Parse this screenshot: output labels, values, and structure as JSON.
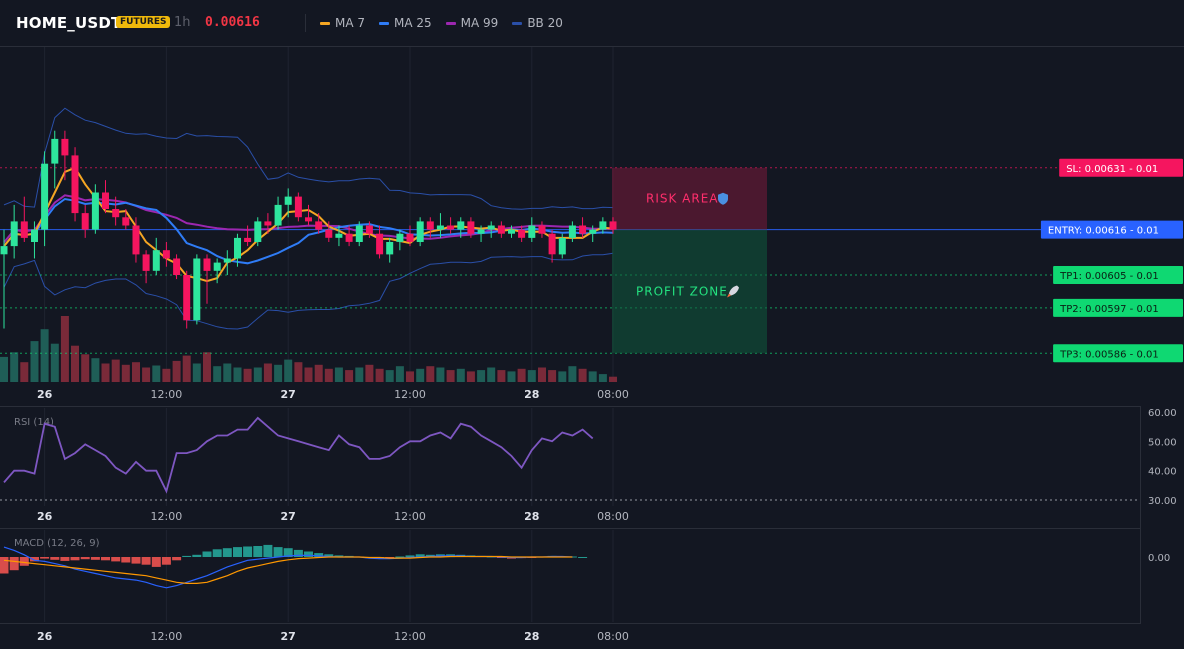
{
  "header": {
    "symbol": "HOME_USDT",
    "badge": "FUTURES",
    "interval": "1h",
    "last_price": "0.00616",
    "indicators": [
      {
        "label": "MA 7",
        "color": "#f5a623"
      },
      {
        "label": "MA 25",
        "color": "#2f7cf6"
      },
      {
        "label": "MA 99",
        "color": "#9c27b0"
      },
      {
        "label": "BB 20",
        "color": "#2a4fa8"
      }
    ]
  },
  "colors": {
    "up": "#26a69a",
    "up_bright": "#2ee59d",
    "down": "#f23645",
    "down_bright": "#f5155f",
    "grid": "#1f2330",
    "separator": "#2a2e39",
    "text": "#d1d4dc",
    "muted": "#787b86",
    "entry": "#2962ff",
    "sl": "#f5155f",
    "tp": "#0fd872",
    "rsi": "#7e57c2",
    "macd": "#2962ff",
    "signal": "#ff9800"
  },
  "chart_data": [
    {
      "type": "candlestick",
      "title": "HOME_USDT 1h",
      "x_tick_labels": [
        "26",
        "12:00",
        "27",
        "12:00",
        "28",
        "08:00"
      ],
      "x_tick_index": [
        4,
        16,
        28,
        40,
        52,
        60
      ],
      "ylim": [
        0.0058,
        0.00655
      ],
      "price_levels": [
        {
          "label": "SL: 0.00631 - 0.01",
          "value": 0.00631,
          "type": "sl"
        },
        {
          "label": "ENTRY: 0.00616 - 0.01",
          "value": 0.00616,
          "type": "entry"
        },
        {
          "label": "TP1: 0.00605 - 0.01",
          "value": 0.00605,
          "type": "tp"
        },
        {
          "label": "TP2: 0.00597 - 0.01",
          "value": 0.00597,
          "type": "tp"
        },
        {
          "label": "TP3: 0.00586 - 0.01",
          "value": 0.00586,
          "type": "tp"
        }
      ],
      "zones": [
        {
          "label": "RISK AREA",
          "icon": "shield-icon",
          "from": 0.00616,
          "to": 0.00631
        },
        {
          "label": "PROFIT ZONE",
          "icon": "rocket-icon",
          "from": 0.00586,
          "to": 0.00616
        }
      ],
      "candles_ohlc": [
        [
          0.0061,
          0.00616,
          0.00592,
          0.00612
        ],
        [
          0.00612,
          0.00622,
          0.00609,
          0.00618
        ],
        [
          0.00618,
          0.00624,
          0.00613,
          0.00614
        ],
        [
          0.00613,
          0.00618,
          0.00609,
          0.00616
        ],
        [
          0.00616,
          0.00635,
          0.00612,
          0.00632
        ],
        [
          0.00632,
          0.0064,
          0.00626,
          0.00638
        ],
        [
          0.00638,
          0.0064,
          0.00628,
          0.00634
        ],
        [
          0.00634,
          0.00636,
          0.00618,
          0.0062
        ],
        [
          0.0062,
          0.00622,
          0.00614,
          0.00616
        ],
        [
          0.00616,
          0.00627,
          0.00615,
          0.00625
        ],
        [
          0.00625,
          0.00628,
          0.0062,
          0.00621
        ],
        [
          0.00621,
          0.00624,
          0.00617,
          0.00619
        ],
        [
          0.00619,
          0.00621,
          0.00616,
          0.00617
        ],
        [
          0.00617,
          0.00619,
          0.00608,
          0.0061
        ],
        [
          0.0061,
          0.00611,
          0.00603,
          0.00606
        ],
        [
          0.00606,
          0.00614,
          0.00605,
          0.00611
        ],
        [
          0.00611,
          0.00613,
          0.00607,
          0.00609
        ],
        [
          0.00609,
          0.0061,
          0.00604,
          0.00605
        ],
        [
          0.00605,
          0.00606,
          0.00592,
          0.00594
        ],
        [
          0.00594,
          0.0061,
          0.00593,
          0.00609
        ],
        [
          0.00609,
          0.0061,
          0.00598,
          0.00606
        ],
        [
          0.00606,
          0.00609,
          0.00603,
          0.00608
        ],
        [
          0.00608,
          0.00611,
          0.00605,
          0.00609
        ],
        [
          0.00609,
          0.00615,
          0.00607,
          0.00614
        ],
        [
          0.00614,
          0.00617,
          0.00612,
          0.00613
        ],
        [
          0.00613,
          0.00619,
          0.00612,
          0.00618
        ],
        [
          0.00618,
          0.0062,
          0.00615,
          0.00617
        ],
        [
          0.00617,
          0.00624,
          0.00616,
          0.00622
        ],
        [
          0.00622,
          0.00626,
          0.00619,
          0.00624
        ],
        [
          0.00624,
          0.00625,
          0.00618,
          0.00619
        ],
        [
          0.00619,
          0.00622,
          0.00617,
          0.00618
        ],
        [
          0.00618,
          0.0062,
          0.00615,
          0.00616
        ],
        [
          0.00616,
          0.00618,
          0.00613,
          0.00614
        ],
        [
          0.00614,
          0.00617,
          0.00612,
          0.00615
        ],
        [
          0.00615,
          0.00617,
          0.00612,
          0.00613
        ],
        [
          0.00613,
          0.00618,
          0.00612,
          0.00617
        ],
        [
          0.00617,
          0.00618,
          0.00614,
          0.00615
        ],
        [
          0.00615,
          0.00617,
          0.00609,
          0.0061
        ],
        [
          0.0061,
          0.00614,
          0.00608,
          0.00613
        ],
        [
          0.00613,
          0.00616,
          0.00611,
          0.00615
        ],
        [
          0.00615,
          0.00617,
          0.00612,
          0.00613
        ],
        [
          0.00613,
          0.00619,
          0.00612,
          0.00618
        ],
        [
          0.00618,
          0.00619,
          0.00614,
          0.00616
        ],
        [
          0.00616,
          0.0062,
          0.00614,
          0.00617
        ],
        [
          0.00617,
          0.00619,
          0.00615,
          0.00616
        ],
        [
          0.00616,
          0.00619,
          0.00614,
          0.00618
        ],
        [
          0.00618,
          0.00619,
          0.00614,
          0.00615
        ],
        [
          0.00615,
          0.00617,
          0.00613,
          0.00616
        ],
        [
          0.00616,
          0.00618,
          0.00614,
          0.00617
        ],
        [
          0.00617,
          0.00618,
          0.00614,
          0.00615
        ],
        [
          0.00615,
          0.00617,
          0.00614,
          0.00616
        ],
        [
          0.00616,
          0.00617,
          0.00613,
          0.00614
        ],
        [
          0.00614,
          0.00619,
          0.00613,
          0.00617
        ],
        [
          0.00617,
          0.00618,
          0.00614,
          0.00615
        ],
        [
          0.00615,
          0.00616,
          0.00608,
          0.0061
        ],
        [
          0.0061,
          0.00615,
          0.00609,
          0.00614
        ],
        [
          0.00614,
          0.00618,
          0.00613,
          0.00617
        ],
        [
          0.00617,
          0.00619,
          0.00614,
          0.00615
        ],
        [
          0.00615,
          0.00617,
          0.00613,
          0.00616
        ],
        [
          0.00616,
          0.00619,
          0.00615,
          0.00618
        ],
        [
          0.00618,
          0.00619,
          0.00615,
          0.00616
        ]
      ],
      "volume": [
        38,
        45,
        30,
        62,
        80,
        58,
        100,
        55,
        42,
        36,
        28,
        34,
        26,
        30,
        22,
        25,
        20,
        32,
        40,
        28,
        45,
        24,
        28,
        22,
        20,
        22,
        28,
        26,
        34,
        30,
        22,
        26,
        20,
        22,
        18,
        22,
        26,
        20,
        18,
        24,
        16,
        20,
        24,
        22,
        18,
        20,
        16,
        18,
        22,
        18,
        16,
        20,
        18,
        22,
        18,
        16,
        24,
        20,
        16,
        12,
        8
      ]
    },
    {
      "type": "line",
      "title": "RSI (14)",
      "y_tick_labels": [
        "60.00",
        "50.00",
        "40.00",
        "30.00"
      ],
      "ylim": [
        30,
        60
      ],
      "values": [
        36,
        40,
        40,
        39,
        56,
        55,
        44,
        46,
        49,
        47,
        45,
        41,
        39,
        43,
        40,
        40,
        33,
        46,
        46,
        47,
        50,
        52,
        52,
        54,
        54,
        58,
        55,
        52,
        51,
        50,
        49,
        48,
        47,
        52,
        49,
        48,
        44,
        44,
        45,
        48,
        50,
        50,
        52,
        53,
        51,
        56,
        55,
        52,
        50,
        48,
        45,
        41,
        47,
        51,
        50,
        53,
        52,
        54,
        51
      ],
      "reference_lines": [
        30
      ]
    },
    {
      "type": "bar",
      "title": "MACD (12, 26, 9)",
      "y_tick_labels": [
        "0.00"
      ],
      "histogram": [
        -3e-05,
        -2.4e-05,
        -1.6e-05,
        -8e-06,
        -3e-06,
        -5e-06,
        -7e-06,
        -6e-06,
        -4e-06,
        -5e-06,
        -6e-06,
        -8e-06,
        -1e-05,
        -1.2e-05,
        -1.4e-05,
        -1.8e-05,
        -1.4e-05,
        -6e-06,
        2e-06,
        4e-06,
        1e-05,
        1.4e-05,
        1.6e-05,
        1.8e-05,
        1.9e-05,
        2e-05,
        2.2e-05,
        1.8e-05,
        1.6e-05,
        1.3e-05,
        1e-05,
        7e-06,
        5e-06,
        3e-06,
        2e-06,
        1e-06,
        -2e-06,
        -3e-06,
        -2e-06,
        1e-06,
        3e-06,
        5e-06,
        4e-06,
        5e-06,
        5e-06,
        4e-06,
        3e-06,
        2e-06,
        1e-06,
        -1e-06,
        -3e-06,
        -2e-06,
        -1e-06,
        1e-06,
        2e-06,
        1e-06,
        1e-06,
        0
      ],
      "macd_line": [
        1.8e-05,
        1.2e-05,
        4e-06,
        -6e-06,
        -8e-06,
        -1.2e-05,
        -1.6e-05,
        -2.2e-05,
        -2.6e-05,
        -3e-05,
        -3.4e-05,
        -3.8e-05,
        -4e-05,
        -4.2e-05,
        -4.6e-05,
        -5.2e-05,
        -5.6e-05,
        -5.2e-05,
        -4.6e-05,
        -4e-05,
        -3.4e-05,
        -2.6e-05,
        -1.8e-05,
        -1.2e-05,
        -6e-06,
        -4e-06,
        -2e-06,
        0.0,
        2e-06,
        3e-06,
        3e-06,
        2e-06,
        1e-06,
        0.0,
        0.0,
        0.0,
        -2e-06,
        -3e-06,
        -3e-06,
        -2e-06,
        -1e-06,
        0.0,
        1e-06,
        2e-06,
        2e-06,
        2e-06,
        1e-06,
        1e-06,
        1e-06,
        0.0,
        -1e-06,
        -1e-06,
        0.0,
        0.0,
        1e-06,
        1e-06,
        0.0
      ],
      "signal_line": [
        -6e-06,
        -8e-06,
        -1e-05,
        -1.2e-05,
        -1.4e-05,
        -1.6e-05,
        -1.8e-05,
        -2e-05,
        -2.2e-05,
        -2.4e-05,
        -2.6e-05,
        -2.8e-05,
        -3e-05,
        -3.2e-05,
        -3.4e-05,
        -3.8e-05,
        -4.2e-05,
        -4.6e-05,
        -4.8e-05,
        -4.8e-05,
        -4.6e-05,
        -4e-05,
        -3.4e-05,
        -2.6e-05,
        -2e-05,
        -1.6e-05,
        -1.2e-05,
        -8e-06,
        -5e-06,
        -3e-06,
        -2e-06,
        -1e-06,
        0.0,
        0.0,
        0.0,
        0.0,
        -1e-06,
        -1e-06,
        -2e-06,
        -2e-06,
        -2e-06,
        -1e-06,
        0.0,
        0.0,
        1e-06,
        1e-06,
        1e-06,
        1e-06,
        1e-06,
        1e-06,
        0.0,
        0.0,
        0.0,
        0.0,
        0.0,
        0.0,
        0.0
      ]
    }
  ]
}
